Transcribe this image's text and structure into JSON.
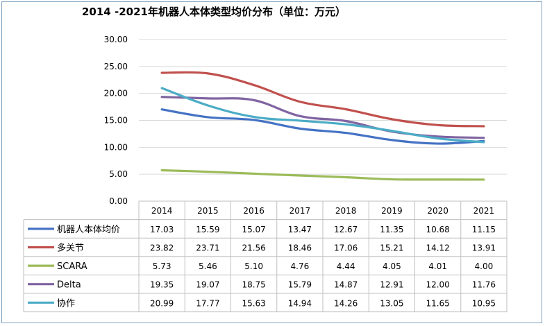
{
  "chart_data": {
    "type": "line",
    "title": "2014 -2021年机器人本体类型均价分布（单位：万元）",
    "categories": [
      "2014",
      "2015",
      "2016",
      "2017",
      "2018",
      "2019",
      "2020",
      "2021"
    ],
    "y_tick_labels": [
      "0.00",
      "5.00",
      "10.00",
      "15.00",
      "20.00",
      "25.00",
      "30.00"
    ],
    "ylim": [
      0,
      30
    ],
    "grid": true,
    "legend_placement": "data-table",
    "series": [
      {
        "name": "机器人本体均价",
        "color": "#4472c4",
        "values": [
          17.03,
          15.59,
          15.07,
          13.47,
          12.67,
          11.35,
          10.68,
          11.15
        ],
        "labels": [
          "17.03",
          "15.59",
          "15.07",
          "13.47",
          "12.67",
          "11.35",
          "10.68",
          "11.15"
        ]
      },
      {
        "name": "多关节",
        "color": "#c0504d",
        "values": [
          23.82,
          23.71,
          21.56,
          18.46,
          17.06,
          15.21,
          14.12,
          13.91
        ],
        "labels": [
          "23.82",
          "23.71",
          "21.56",
          "18.46",
          "17.06",
          "15.21",
          "14.12",
          "13.91"
        ]
      },
      {
        "name": "SCARA",
        "color": "#9bbb59",
        "values": [
          5.73,
          5.46,
          5.1,
          4.76,
          4.44,
          4.05,
          4.01,
          4.0
        ],
        "labels": [
          "5.73",
          "5.46",
          "5.10",
          "4.76",
          "4.44",
          "4.05",
          "4.01",
          "4.00"
        ]
      },
      {
        "name": "Delta",
        "color": "#8064a2",
        "values": [
          19.35,
          19.07,
          18.75,
          15.79,
          14.87,
          12.91,
          12.0,
          11.76
        ],
        "labels": [
          "19.35",
          "19.07",
          "18.75",
          "15.79",
          "14.87",
          "12.91",
          "12.00",
          "11.76"
        ]
      },
      {
        "name": "协作",
        "color": "#4bacc6",
        "values": [
          20.99,
          17.77,
          15.63,
          14.94,
          14.26,
          13.05,
          11.65,
          10.95
        ],
        "labels": [
          "20.99",
          "17.77",
          "15.63",
          "14.94",
          "14.26",
          "13.05",
          "11.65",
          "10.95"
        ]
      }
    ]
  }
}
